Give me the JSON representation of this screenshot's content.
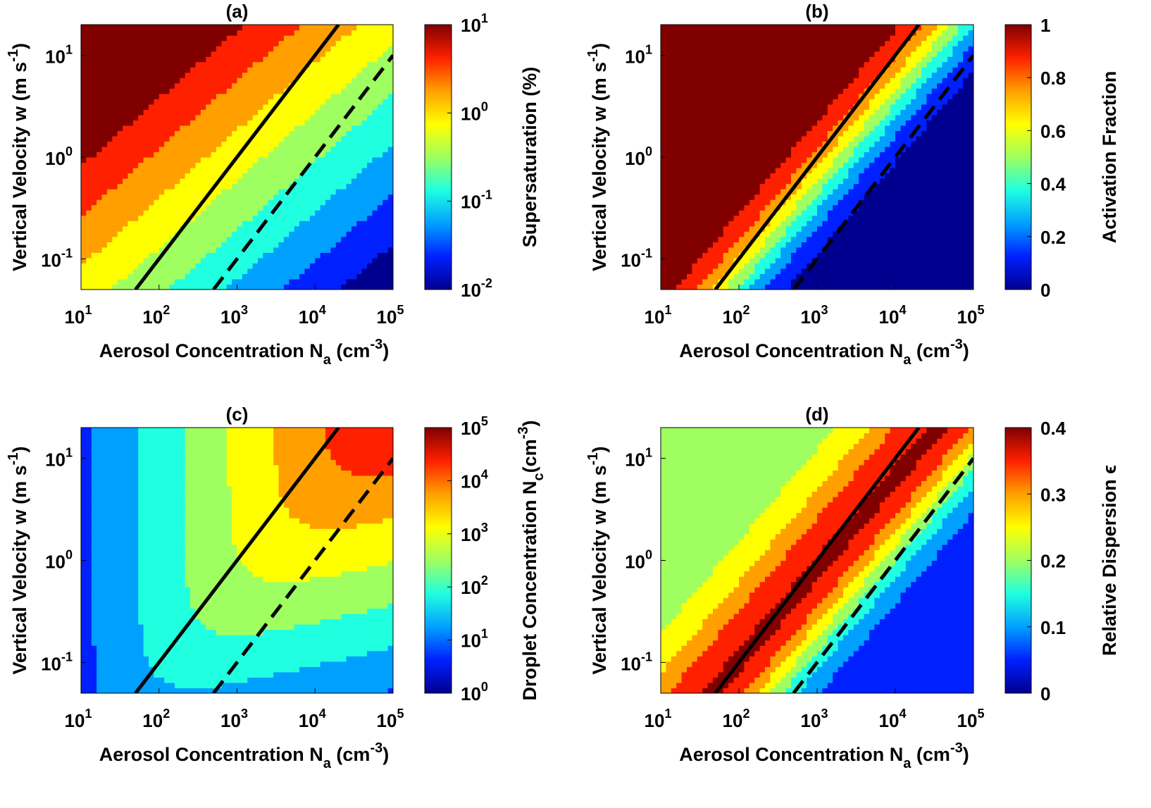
{
  "chart_data": [
    {
      "type": "heatmap",
      "panel_label": "(a)",
      "xlabel": {
        "main": "Aerosol Concentration N",
        "sub": "a",
        "unit_open": " (cm",
        "unit_sup": "-3",
        "unit_close": ")"
      },
      "ylabel": {
        "main": "Vertical Velocity w (m s",
        "sup": "-1",
        "close": ")"
      },
      "x_scale": "log",
      "xlim": [
        10,
        100000
      ],
      "y_scale": "log",
      "ylim": [
        0.05,
        20
      ],
      "x_ticks": [
        {
          "base": "10",
          "exp": "1"
        },
        {
          "base": "10",
          "exp": "2"
        },
        {
          "base": "10",
          "exp": "3"
        },
        {
          "base": "10",
          "exp": "4"
        },
        {
          "base": "10",
          "exp": "5"
        }
      ],
      "y_ticks": [
        {
          "value": 0.1,
          "base": "10",
          "exp": "-1"
        },
        {
          "value": 1,
          "base": "10",
          "exp": "0"
        },
        {
          "value": 10,
          "base": "10",
          "exp": "1"
        }
      ],
      "colorbar": {
        "label": "Supersaturation (%)",
        "scale": "log",
        "ticks": [
          {
            "base": "10",
            "exp": "-2"
          },
          {
            "base": "10",
            "exp": "-1"
          },
          {
            "base": "10",
            "exp": "0"
          },
          {
            "base": "10",
            "exp": "1"
          }
        ]
      },
      "field": "supersaturation",
      "solid_line": {
        "x": [
          50,
          20000
        ],
        "y": [
          0.05,
          20
        ]
      },
      "dashed_line": {
        "x": [
          500,
          100000
        ],
        "y": [
          0.05,
          10
        ]
      }
    },
    {
      "type": "heatmap",
      "panel_label": "(b)",
      "xlabel": {
        "main": "Aerosol Concentration N",
        "sub": "a",
        "unit_open": " (cm",
        "unit_sup": "-3",
        "unit_close": ")"
      },
      "ylabel": {
        "main": "Vertical Velocity w (m s",
        "sup": "-1",
        "close": ")"
      },
      "x_scale": "log",
      "xlim": [
        10,
        100000
      ],
      "y_scale": "log",
      "ylim": [
        0.05,
        20
      ],
      "x_ticks": [
        {
          "base": "10",
          "exp": "1"
        },
        {
          "base": "10",
          "exp": "2"
        },
        {
          "base": "10",
          "exp": "3"
        },
        {
          "base": "10",
          "exp": "4"
        },
        {
          "base": "10",
          "exp": "5"
        }
      ],
      "y_ticks": [
        {
          "value": 0.1,
          "base": "10",
          "exp": "-1"
        },
        {
          "value": 1,
          "base": "10",
          "exp": "0"
        },
        {
          "value": 10,
          "base": "10",
          "exp": "1"
        }
      ],
      "colorbar": {
        "label": "Activation Fraction",
        "scale": "linear",
        "ticks": [
          {
            "base": "0",
            "exp": ""
          },
          {
            "base": "0.2",
            "exp": ""
          },
          {
            "base": "0.4",
            "exp": ""
          },
          {
            "base": "0.6",
            "exp": ""
          },
          {
            "base": "0.8",
            "exp": ""
          },
          {
            "base": "1",
            "exp": ""
          }
        ]
      },
      "field": "activation_fraction",
      "solid_line": {
        "x": [
          50,
          20000
        ],
        "y": [
          0.05,
          20
        ]
      },
      "dashed_line": {
        "x": [
          500,
          100000
        ],
        "y": [
          0.05,
          10
        ]
      }
    },
    {
      "type": "heatmap",
      "panel_label": "(c)",
      "xlabel": {
        "main": "Aerosol Concentration N",
        "sub": "a",
        "unit_open": " (cm",
        "unit_sup": "-3",
        "unit_close": ")"
      },
      "ylabel": {
        "main": "Vertical Velocity w (m s",
        "sup": "-1",
        "close": ")"
      },
      "x_scale": "log",
      "xlim": [
        10,
        100000
      ],
      "y_scale": "log",
      "ylim": [
        0.05,
        20
      ],
      "x_ticks": [
        {
          "base": "10",
          "exp": "1"
        },
        {
          "base": "10",
          "exp": "2"
        },
        {
          "base": "10",
          "exp": "3"
        },
        {
          "base": "10",
          "exp": "4"
        },
        {
          "base": "10",
          "exp": "5"
        }
      ],
      "y_ticks": [
        {
          "value": 0.1,
          "base": "10",
          "exp": "-1"
        },
        {
          "value": 1,
          "base": "10",
          "exp": "0"
        },
        {
          "value": 10,
          "base": "10",
          "exp": "1"
        }
      ],
      "colorbar": {
        "label": "Droplet Concentration N",
        "label_sub": "c",
        "label_unit_open": "(cm",
        "label_unit_sup": "-3",
        "label_unit_close": ")",
        "scale": "log",
        "ticks": [
          {
            "base": "10",
            "exp": "0"
          },
          {
            "base": "10",
            "exp": "1"
          },
          {
            "base": "10",
            "exp": "2"
          },
          {
            "base": "10",
            "exp": "3"
          },
          {
            "base": "10",
            "exp": "4"
          },
          {
            "base": "10",
            "exp": "5"
          }
        ]
      },
      "field": "droplet_concentration",
      "solid_line": {
        "x": [
          50,
          20000
        ],
        "y": [
          0.05,
          20
        ]
      },
      "dashed_line": {
        "x": [
          500,
          100000
        ],
        "y": [
          0.05,
          10
        ]
      }
    },
    {
      "type": "heatmap",
      "panel_label": "(d)",
      "xlabel": {
        "main": "Aerosol Concentration N",
        "sub": "a",
        "unit_open": " (cm",
        "unit_sup": "-3",
        "unit_close": ")"
      },
      "ylabel": {
        "main": "Vertical Velocity w (m s",
        "sup": "-1",
        "close": ")"
      },
      "x_scale": "log",
      "xlim": [
        10,
        100000
      ],
      "y_scale": "log",
      "ylim": [
        0.05,
        20
      ],
      "x_ticks": [
        {
          "base": "10",
          "exp": "1"
        },
        {
          "base": "10",
          "exp": "2"
        },
        {
          "base": "10",
          "exp": "3"
        },
        {
          "base": "10",
          "exp": "4"
        },
        {
          "base": "10",
          "exp": "5"
        }
      ],
      "y_ticks": [
        {
          "value": 0.1,
          "base": "10",
          "exp": "-1"
        },
        {
          "value": 1,
          "base": "10",
          "exp": "0"
        },
        {
          "value": 10,
          "base": "10",
          "exp": "1"
        }
      ],
      "colorbar": {
        "label": "Relative Dispersion ϵ",
        "scale": "linear",
        "ticks": [
          {
            "base": "0",
            "exp": ""
          },
          {
            "base": "0.1",
            "exp": ""
          },
          {
            "base": "0.2",
            "exp": ""
          },
          {
            "base": "0.3",
            "exp": ""
          },
          {
            "base": "0.4",
            "exp": ""
          }
        ]
      },
      "field": "relative_dispersion",
      "solid_line": {
        "x": [
          50,
          20000
        ],
        "y": [
          0.05,
          20
        ]
      },
      "dashed_line": {
        "x": [
          500,
          100000
        ],
        "y": [
          0.05,
          10
        ]
      }
    }
  ],
  "colormap": [
    "#00008f",
    "#0020ff",
    "#00a0ff",
    "#20ffdf",
    "#9fff60",
    "#ffff00",
    "#ff9f00",
    "#ff2000",
    "#800000"
  ]
}
